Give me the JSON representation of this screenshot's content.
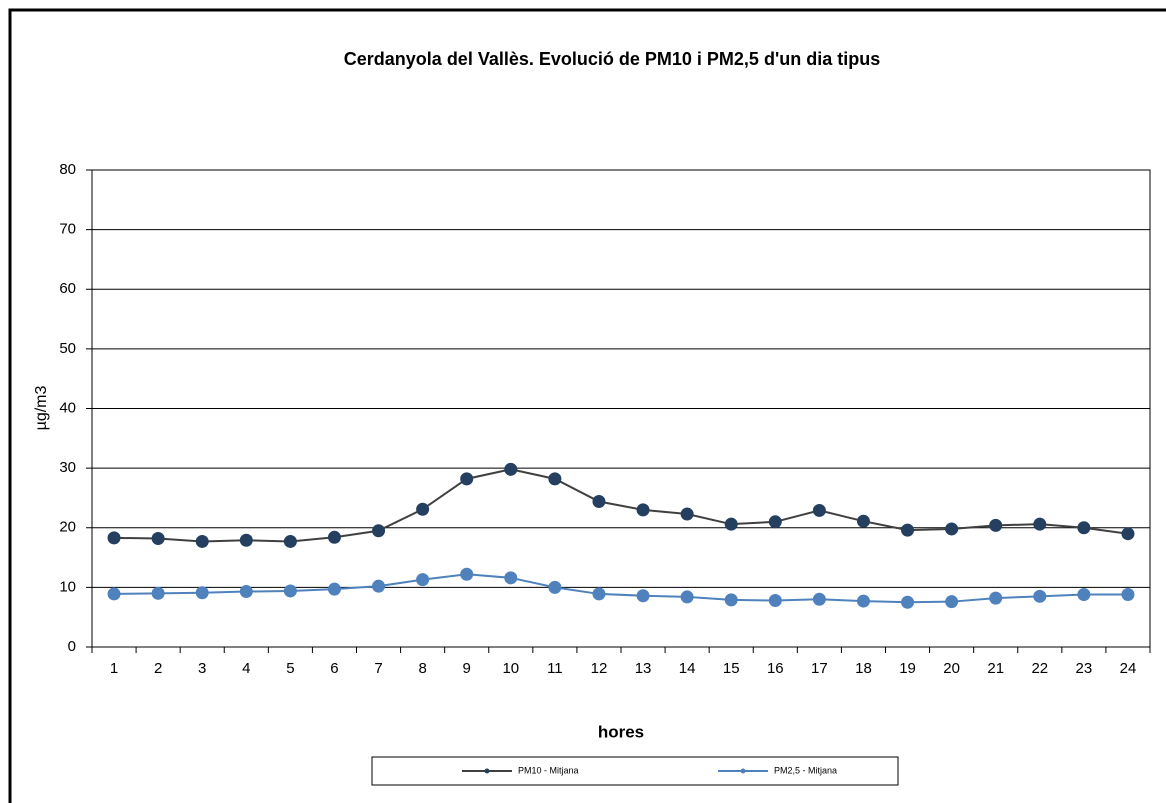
{
  "chart_data": {
    "type": "line",
    "title": "Cerdanyola del Vallès. Evolució de PM10 i PM2,5  d'un dia tipus",
    "x_label": "hores",
    "y_label": "µg/m3",
    "categories": [
      "1",
      "2",
      "3",
      "4",
      "5",
      "6",
      "7",
      "8",
      "9",
      "10",
      "11",
      "12",
      "13",
      "14",
      "15",
      "16",
      "17",
      "18",
      "19",
      "20",
      "21",
      "22",
      "23",
      "24"
    ],
    "series": [
      {
        "name": "PM10 -  Mitjana",
        "color": "#404040",
        "marker_color": "#243f60",
        "values": [
          18.3,
          18.2,
          17.7,
          17.9,
          17.7,
          18.4,
          19.5,
          23.1,
          28.2,
          29.8,
          28.2,
          24.4,
          23.0,
          22.3,
          20.6,
          21.0,
          22.9,
          21.1,
          19.6,
          19.8,
          20.4,
          20.6,
          20.0,
          19.0
        ]
      },
      {
        "name": "PM2,5 -  Mitjana",
        "color": "#4f81bd",
        "marker_color": "#4f81bd",
        "values": [
          8.9,
          9.0,
          9.1,
          9.3,
          9.4,
          9.7,
          10.2,
          11.3,
          12.2,
          11.6,
          10.0,
          8.9,
          8.6,
          8.4,
          7.9,
          7.8,
          8.0,
          7.7,
          7.5,
          7.6,
          8.2,
          8.5,
          8.8,
          8.8
        ]
      }
    ],
    "ylim": [
      0,
      80
    ],
    "yticks": [
      0,
      10,
      20,
      30,
      40,
      50,
      60,
      70,
      80
    ],
    "grid": true,
    "legend": "bottom"
  }
}
